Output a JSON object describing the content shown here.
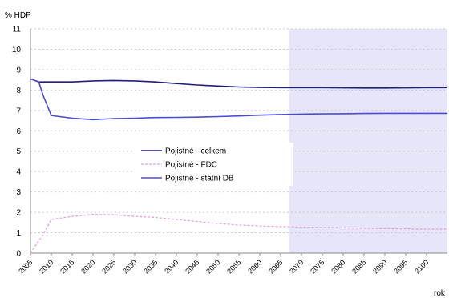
{
  "chart_data": {
    "type": "line",
    "ylabel": "% HDP",
    "xlabel": "rok",
    "ylim": [
      0,
      11
    ],
    "yticks": [
      "0",
      "1",
      "2",
      "3",
      "4",
      "5",
      "6",
      "7",
      "8",
      "9",
      "10",
      "11"
    ],
    "xlim": [
      2005,
      2105
    ],
    "xticks": [
      "2005",
      "2010",
      "2015",
      "2020",
      "2025",
      "2030",
      "2035",
      "2040",
      "2045",
      "2050",
      "2055",
      "2060",
      "2065",
      "2070",
      "2075",
      "2080",
      "2085",
      "2090",
      "2095",
      "2100"
    ],
    "grid": true,
    "shaded_region": {
      "x_from": 2067,
      "x_to": 2105,
      "color": "#e6e6f8"
    },
    "legend": {
      "placement": "center-left"
    },
    "series": [
      {
        "name": "Pojistné - celkem",
        "color": "#1f1f7a",
        "style": "solid",
        "points": [
          [
            2005,
            8.55
          ],
          [
            2007,
            8.4
          ],
          [
            2010,
            8.4
          ],
          [
            2015,
            8.4
          ],
          [
            2020,
            8.45
          ],
          [
            2025,
            8.47
          ],
          [
            2030,
            8.45
          ],
          [
            2035,
            8.4
          ],
          [
            2040,
            8.32
          ],
          [
            2045,
            8.25
          ],
          [
            2050,
            8.2
          ],
          [
            2055,
            8.15
          ],
          [
            2060,
            8.13
          ],
          [
            2065,
            8.12
          ],
          [
            2070,
            8.12
          ],
          [
            2075,
            8.12
          ],
          [
            2080,
            8.11
          ],
          [
            2085,
            8.1
          ],
          [
            2090,
            8.1
          ],
          [
            2095,
            8.11
          ],
          [
            2100,
            8.12
          ],
          [
            2105,
            8.12
          ]
        ]
      },
      {
        "name": "Pojistné - FDC",
        "color": "#e2a0e2",
        "style": "dashed",
        "points": [
          [
            2005,
            0
          ],
          [
            2008,
            0.9
          ],
          [
            2010,
            1.65
          ],
          [
            2015,
            1.8
          ],
          [
            2020,
            1.9
          ],
          [
            2025,
            1.88
          ],
          [
            2030,
            1.8
          ],
          [
            2035,
            1.75
          ],
          [
            2040,
            1.65
          ],
          [
            2045,
            1.55
          ],
          [
            2050,
            1.45
          ],
          [
            2055,
            1.38
          ],
          [
            2060,
            1.33
          ],
          [
            2065,
            1.3
          ],
          [
            2070,
            1.28
          ],
          [
            2075,
            1.26
          ],
          [
            2080,
            1.24
          ],
          [
            2085,
            1.22
          ],
          [
            2090,
            1.2
          ],
          [
            2095,
            1.19
          ],
          [
            2100,
            1.18
          ],
          [
            2105,
            1.18
          ]
        ]
      },
      {
        "name": "Pojistné - státní DB",
        "color": "#4c4cd6",
        "style": "solid",
        "points": [
          [
            2005,
            8.55
          ],
          [
            2007,
            8.4
          ],
          [
            2008,
            7.75
          ],
          [
            2010,
            6.75
          ],
          [
            2015,
            6.62
          ],
          [
            2020,
            6.55
          ],
          [
            2025,
            6.6
          ],
          [
            2030,
            6.62
          ],
          [
            2035,
            6.65
          ],
          [
            2040,
            6.66
          ],
          [
            2045,
            6.67
          ],
          [
            2050,
            6.7
          ],
          [
            2055,
            6.73
          ],
          [
            2060,
            6.77
          ],
          [
            2065,
            6.8
          ],
          [
            2070,
            6.82
          ],
          [
            2075,
            6.83
          ],
          [
            2080,
            6.84
          ],
          [
            2085,
            6.85
          ],
          [
            2090,
            6.86
          ],
          [
            2095,
            6.86
          ],
          [
            2100,
            6.86
          ],
          [
            2105,
            6.86
          ]
        ]
      }
    ]
  }
}
